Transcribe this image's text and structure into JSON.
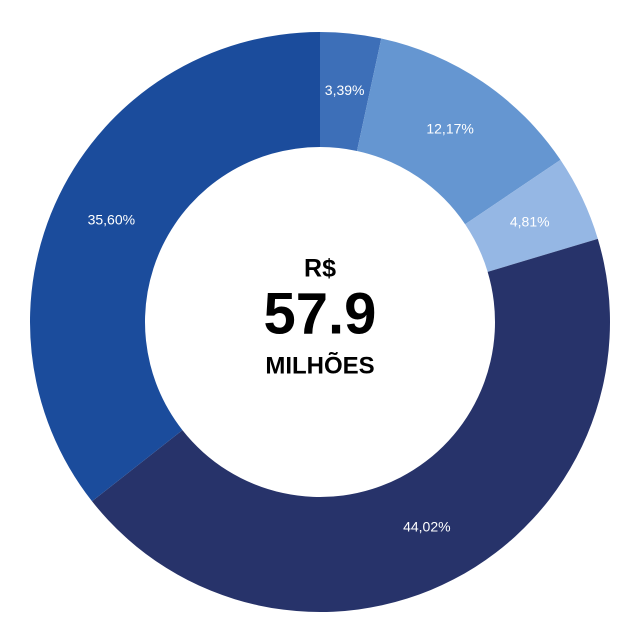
{
  "chart_data": {
    "type": "donut",
    "values": [
      3.39,
      12.17,
      4.81,
      44.02,
      35.6
    ],
    "value_labels": [
      "3,39%",
      "12,17%",
      "4,81%",
      "44,02%",
      "35,60%"
    ],
    "colors": [
      "#3d6fb8",
      "#6596d1",
      "#95b7e4",
      "#27336a",
      "#1b4c9c"
    ],
    "center_text": [
      "R$",
      "57.9",
      "MILHÕES"
    ]
  }
}
